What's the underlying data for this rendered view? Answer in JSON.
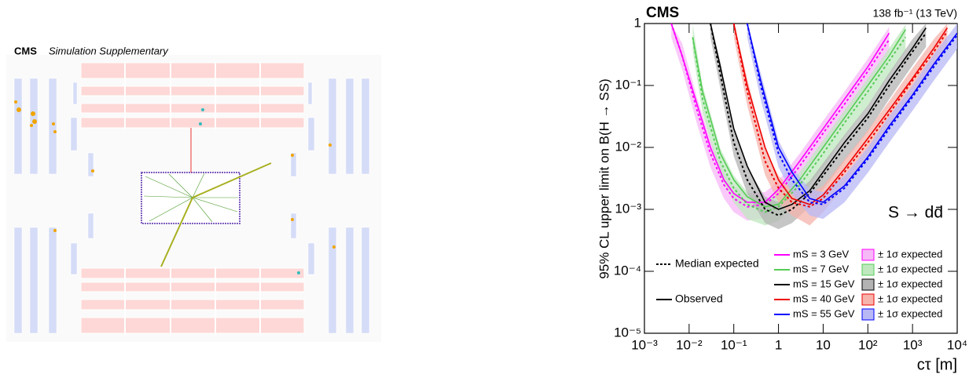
{
  "event_display": {
    "label": "CMS",
    "sublabel": "Simulation Supplementary"
  },
  "chart_data": {
    "type": "line",
    "title": "CMS",
    "subtitle": "138 fb⁻¹ (13 TeV)",
    "x_label": "cτ [m]",
    "y_label": "95% CL upper limit on B(H → SS)",
    "annotation": "S → dd̄",
    "log_x": true,
    "log_y": true,
    "xlim": [
      0.001,
      10000
    ],
    "ylim": [
      1e-05,
      1
    ],
    "xticks": [
      {
        "value": 0.001,
        "label": "10⁻³"
      },
      {
        "value": 0.01,
        "label": "10⁻²"
      },
      {
        "value": 0.1,
        "label": "10⁻¹"
      },
      1,
      10,
      {
        "value": 100,
        "label": "10²"
      },
      {
        "value": 1000,
        "label": "10³"
      },
      {
        "value": 10000,
        "label": "10⁴"
      }
    ],
    "yticks": [
      {
        "value": 1e-05,
        "label": "10⁻⁵"
      },
      {
        "value": 0.0001,
        "label": "10⁻⁴"
      },
      {
        "value": 0.001,
        "label": "10⁻³"
      },
      {
        "value": 0.01,
        "label": "10⁻²"
      },
      {
        "value": 0.1,
        "label": "10⁻¹"
      },
      1
    ],
    "legend_expected": "Median expected",
    "legend_observed": "Observed",
    "series": [
      {
        "name": "mS = 3 GeV",
        "band_label": "± 1σ expected",
        "color": "#ff00ff",
        "band_color": "#f7b8f7",
        "x": [
          0.004,
          0.007,
          0.015,
          0.03,
          0.06,
          0.1,
          0.2,
          0.5,
          1,
          3,
          10,
          30,
          100,
          300
        ],
        "observed": [
          1,
          0.3,
          0.05,
          0.01,
          0.003,
          0.0018,
          0.0013,
          0.0013,
          0.0021,
          0.006,
          0.02,
          0.06,
          0.2,
          0.7
        ],
        "expected": [
          1,
          0.3,
          0.04,
          0.008,
          0.0025,
          0.0015,
          0.0011,
          0.0012,
          0.0018,
          0.005,
          0.017,
          0.05,
          0.17,
          0.55
        ],
        "band_low": [
          0.6,
          0.18,
          0.024,
          0.0048,
          0.0015,
          0.0009,
          0.00066,
          0.00072,
          0.0011,
          0.003,
          0.01,
          0.03,
          0.1,
          0.33
        ],
        "band_high": [
          1,
          0.48,
          0.064,
          0.013,
          0.004,
          0.0024,
          0.0018,
          0.0019,
          0.0029,
          0.008,
          0.027,
          0.08,
          0.27,
          0.88
        ]
      },
      {
        "name": "mS = 7 GeV",
        "band_label": "± 1σ expected",
        "color": "#55cc55",
        "band_color": "#bfe8bf",
        "x": [
          0.012,
          0.02,
          0.05,
          0.1,
          0.2,
          0.5,
          1,
          3,
          10,
          30,
          100,
          300,
          700
        ],
        "observed": [
          0.6,
          0.08,
          0.008,
          0.003,
          0.0016,
          0.0011,
          0.0012,
          0.003,
          0.01,
          0.03,
          0.1,
          0.3,
          0.8
        ],
        "expected": [
          0.6,
          0.06,
          0.006,
          0.0022,
          0.0012,
          0.0009,
          0.0011,
          0.0025,
          0.008,
          0.025,
          0.08,
          0.25,
          0.6
        ],
        "band_low": [
          0.36,
          0.036,
          0.0036,
          0.0013,
          0.0007,
          0.00055,
          0.00065,
          0.0015,
          0.0048,
          0.015,
          0.048,
          0.15,
          0.36
        ],
        "band_high": [
          0.96,
          0.1,
          0.0096,
          0.0035,
          0.0019,
          0.0014,
          0.0018,
          0.004,
          0.013,
          0.04,
          0.13,
          0.4,
          0.96
        ]
      },
      {
        "name": "mS = 15 GeV",
        "band_label": "± 1σ expected",
        "color": "#000000",
        "band_color": "#b3b3b3",
        "x": [
          0.03,
          0.05,
          0.1,
          0.2,
          0.5,
          1,
          2,
          5,
          10,
          30,
          100,
          300,
          1000,
          2000
        ],
        "observed": [
          1,
          0.2,
          0.02,
          0.005,
          0.0013,
          0.001,
          0.0012,
          0.002,
          0.004,
          0.012,
          0.035,
          0.12,
          0.4,
          0.85
        ],
        "expected": [
          1,
          0.15,
          0.012,
          0.003,
          0.001,
          0.0008,
          0.001,
          0.0018,
          0.0035,
          0.01,
          0.03,
          0.1,
          0.35,
          0.7
        ],
        "band_low": [
          0.6,
          0.09,
          0.0072,
          0.0018,
          0.0006,
          0.00048,
          0.0006,
          0.0011,
          0.0021,
          0.006,
          0.018,
          0.06,
          0.21,
          0.42
        ],
        "band_high": [
          1,
          0.24,
          0.019,
          0.0048,
          0.0016,
          0.0013,
          0.0016,
          0.0029,
          0.0056,
          0.016,
          0.048,
          0.16,
          0.56,
          1
        ]
      },
      {
        "name": "mS = 40 GeV",
        "band_label": "± 1σ expected",
        "color": "#ee0000",
        "band_color": "#f5b3ab",
        "x": [
          0.1,
          0.2,
          0.5,
          1,
          2,
          5,
          10,
          30,
          100,
          300,
          1000,
          3000,
          6000
        ],
        "observed": [
          1,
          0.1,
          0.01,
          0.003,
          0.0015,
          0.0012,
          0.0017,
          0.0045,
          0.014,
          0.04,
          0.13,
          0.4,
          0.85
        ],
        "expected": [
          1,
          0.08,
          0.006,
          0.0022,
          0.0013,
          0.0011,
          0.0015,
          0.004,
          0.012,
          0.035,
          0.12,
          0.35,
          0.75
        ],
        "band_low": [
          0.6,
          0.048,
          0.0036,
          0.0013,
          0.0008,
          0.00055,
          0.0009,
          0.0024,
          0.0072,
          0.021,
          0.072,
          0.21,
          0.45
        ],
        "band_high": [
          1,
          0.13,
          0.0096,
          0.0035,
          0.0021,
          0.0018,
          0.0024,
          0.0064,
          0.019,
          0.056,
          0.19,
          0.56,
          1
        ]
      },
      {
        "name": "mS = 55 GeV",
        "band_label": "± 1σ expected",
        "color": "#0000ff",
        "band_color": "#b8b8f5",
        "x": [
          0.2,
          0.4,
          1,
          2,
          5,
          10,
          30,
          100,
          300,
          1000,
          3000,
          10000
        ],
        "observed": [
          1,
          0.12,
          0.01,
          0.004,
          0.0015,
          0.0013,
          0.0024,
          0.007,
          0.022,
          0.07,
          0.22,
          0.7
        ],
        "expected": [
          1,
          0.1,
          0.008,
          0.003,
          0.0013,
          0.0012,
          0.0022,
          0.0065,
          0.02,
          0.065,
          0.2,
          0.65
        ],
        "band_low": [
          0.6,
          0.06,
          0.0048,
          0.0018,
          0.0008,
          0.0007,
          0.0013,
          0.0039,
          0.012,
          0.039,
          0.12,
          0.39
        ],
        "band_high": [
          1,
          0.16,
          0.013,
          0.0048,
          0.0021,
          0.0019,
          0.0035,
          0.01,
          0.032,
          0.1,
          0.32,
          1
        ]
      }
    ]
  }
}
